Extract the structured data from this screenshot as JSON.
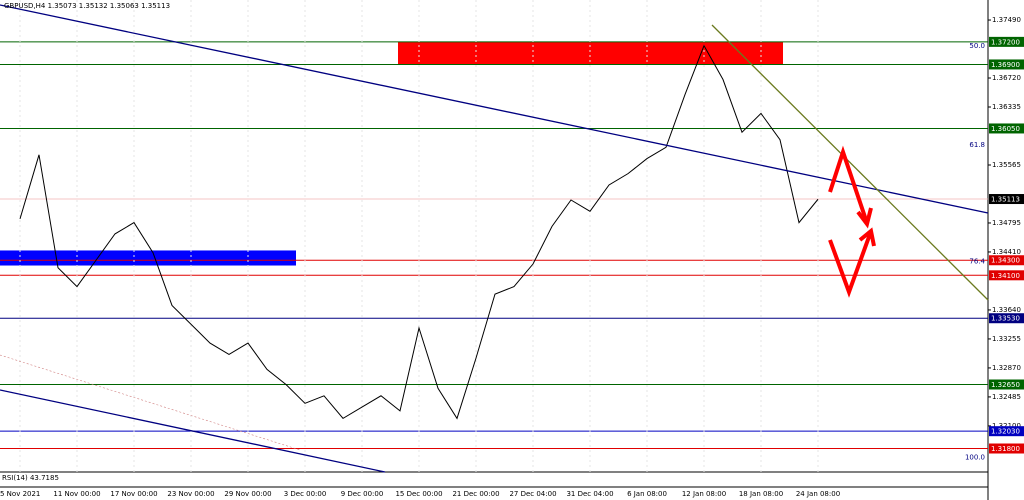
{
  "chart_data": {
    "type": "line",
    "title": "GBPUSD,H4  1.35073 1.35132 1.35063 1.35113",
    "indicator_label": "RSI(14) 43.7185",
    "categories": [
      "5 Nov 2021",
      null,
      null,
      "11 Nov 00:00",
      null,
      null,
      "17 Nov 00:00",
      null,
      null,
      "23 Nov 00:00",
      null,
      null,
      "29 Nov 00:00",
      null,
      null,
      "3 Dec 00:00",
      null,
      null,
      "9 Dec 00:00",
      null,
      null,
      "15 Dec 00:00",
      null,
      null,
      "21 Dec 00:00",
      null,
      null,
      "27 Dec 04:00",
      null,
      null,
      "31 Dec 04:00",
      null,
      null,
      "6 Jan 08:00",
      null,
      null,
      "12 Jan 08:00",
      null,
      null,
      "18 Jan 08:00",
      null,
      null,
      "24 Jan 08:00"
    ],
    "values": [
      1.3485,
      1.357,
      1.342,
      1.3395,
      1.343,
      1.3465,
      1.348,
      1.344,
      1.337,
      1.3345,
      1.332,
      1.3305,
      1.332,
      1.3285,
      1.3265,
      1.324,
      1.325,
      1.322,
      1.3235,
      1.325,
      1.323,
      1.334,
      1.326,
      1.322,
      1.33,
      1.3385,
      1.3395,
      1.3425,
      1.3475,
      1.351,
      1.3495,
      1.353,
      1.3545,
      1.3565,
      1.358,
      1.365,
      1.3715,
      1.367,
      1.36,
      1.3625,
      1.359,
      1.348,
      1.3511
    ],
    "color": "#000000",
    "ylim": [
      1.31488,
      1.37756
    ],
    "yticks": [
      {
        "value": 1.3749,
        "label": "1.37490"
      },
      {
        "value": 1.3672,
        "label": "1.36720"
      },
      {
        "value": 1.36335,
        "label": "1.36335"
      },
      {
        "value": 1.35565,
        "label": "1.35565"
      },
      {
        "value": 1.34795,
        "label": "1.34795"
      },
      {
        "value": 1.3441,
        "label": "1.34410"
      },
      {
        "value": 1.3364,
        "label": "1.33640"
      },
      {
        "value": 1.33255,
        "label": "1.33255"
      },
      {
        "value": 1.3287,
        "label": "1.32870"
      },
      {
        "value": 1.32485,
        "label": "1.32485"
      },
      {
        "value": 1.321,
        "label": "1.32100"
      }
    ],
    "levels": [
      {
        "price": {
          "value": 1.372,
          "label": "1.37200"
        },
        "color": "#006400"
      },
      {
        "price": {
          "value": 1.369,
          "label": "1.36900"
        },
        "color": "#006400"
      },
      {
        "price": {
          "value": 1.3605,
          "label": "1.36050"
        },
        "color": "#006400"
      },
      {
        "price": {
          "value": 1.35113,
          "label": "1.35113"
        },
        "color": "#000000"
      },
      {
        "price": {
          "value": 1.343,
          "label": "1.34300"
        },
        "color": "#e00000"
      },
      {
        "price": {
          "value": 1.341,
          "label": "1.34100"
        },
        "color": "#e00000"
      },
      {
        "price": {
          "value": 1.3353,
          "label": "1.33530"
        },
        "color": "#000080"
      },
      {
        "price": {
          "value": 1.3265,
          "label": "1.32650"
        },
        "color": "#006400"
      },
      {
        "price": {
          "value": 1.3203,
          "label": "1.32030"
        },
        "color": "#0000c0"
      },
      {
        "price": {
          "value": 1.318,
          "label": "1.31800"
        },
        "color": "#e00000"
      }
    ],
    "fib_labels": [
      "50.0",
      "61.8",
      "76.4",
      "100.0"
    ],
    "fib_prices": [
      1.3709,
      1.3578,
      1.3423,
      1.3163
    ],
    "zones": [
      {
        "top": 1.372,
        "bottom": 1.369,
        "color": "#ff0000"
      },
      {
        "top": 1.3443,
        "bottom": 1.3423,
        "color": "#0000ff"
      }
    ]
  }
}
